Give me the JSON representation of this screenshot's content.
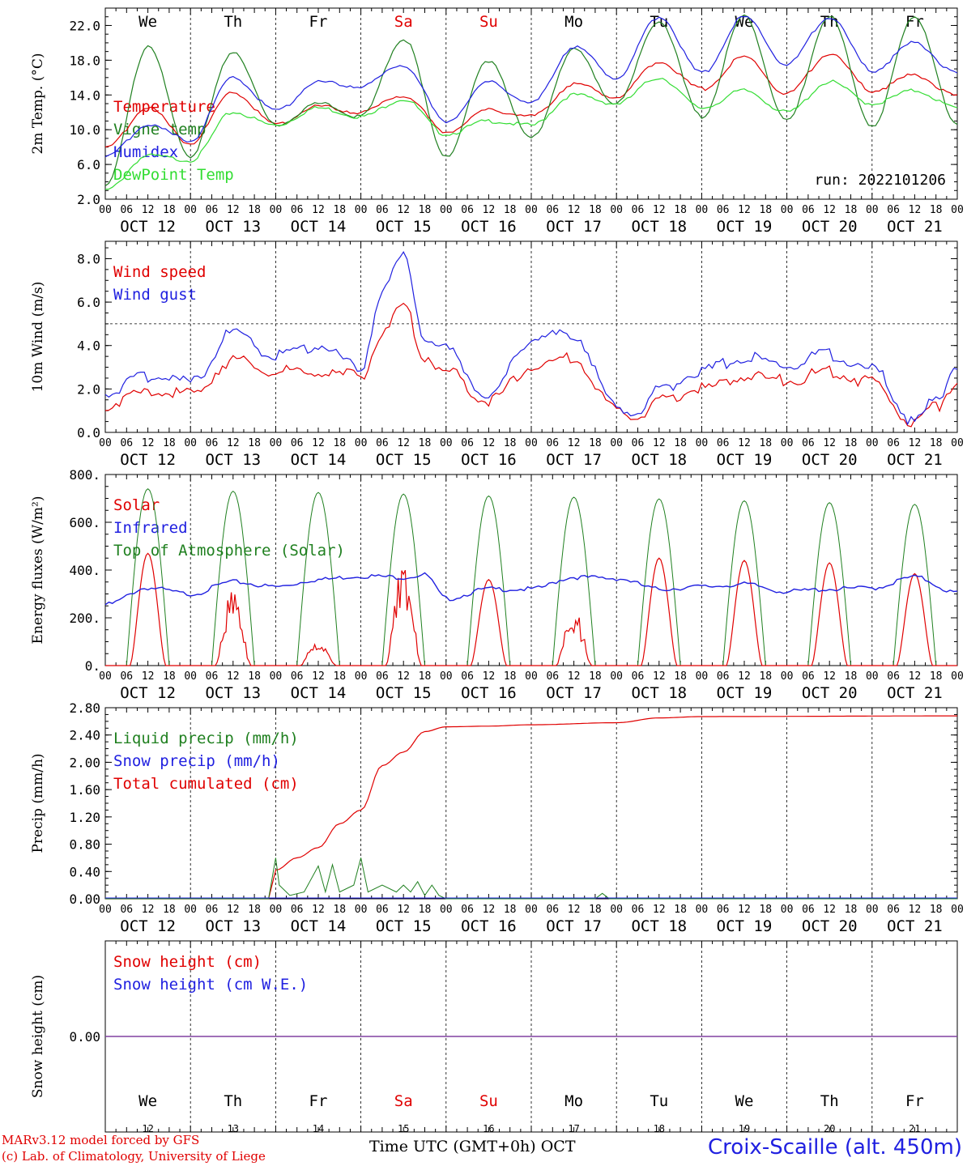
{
  "colors": {
    "red": "#e00000",
    "green": "#208020",
    "blue": "#2020e0",
    "lightgreen": "#33dd33",
    "purple": "#8040a0"
  },
  "days": [
    "12",
    "13",
    "14",
    "15",
    "16",
    "17",
    "18",
    "19",
    "20",
    "21"
  ],
  "day_abbr": [
    "We",
    "Th",
    "Fr",
    "Sa",
    "Su",
    "Mo",
    "Tu",
    "We",
    "Th",
    "Fr"
  ],
  "weekend_index": [
    3,
    4
  ],
  "date_labels": [
    "OCT 12",
    "OCT 13",
    "OCT 14",
    "OCT 15",
    "OCT 16",
    "OCT 17",
    "OCT 18",
    "OCT 19",
    "OCT 20",
    "OCT 21"
  ],
  "hour_ticks": [
    "00",
    "06",
    "12",
    "18"
  ],
  "hour_end": "00",
  "footer": {
    "model": "MARv3.12 model forced by GFS",
    "credit": "(c) Lab. of Climatology, University of Liege",
    "time_axis": "Time UTC (GMT+0h) OCT",
    "location": "Croix-Scaille (alt. 450m)"
  },
  "chart_data": [
    {
      "type": "line",
      "id": "temp",
      "ylabel": "2m Temp. (°C)",
      "ylim": [
        2,
        24
      ],
      "yticks": [
        "2.0",
        "6.0",
        "10.0",
        "14.0",
        "18.0",
        "22.0"
      ],
      "run_label": "run: 2022101206",
      "legend": [
        {
          "name": "Temperature",
          "color": "red"
        },
        {
          "name": "Vigne temp",
          "color": "green"
        },
        {
          "name": "Humidex",
          "color": "blue"
        },
        {
          "name": "DewPoint Temp",
          "color": "lightgreen"
        }
      ],
      "x_hours": [
        0,
        12,
        24,
        36,
        48,
        60,
        72,
        84,
        96,
        108,
        120,
        132,
        144,
        156,
        168,
        180,
        192,
        204,
        216,
        228,
        240
      ],
      "series": [
        {
          "name": "Temperature",
          "color": "red",
          "values": [
            7.8,
            12.5,
            8.5,
            14.3,
            10.6,
            12.7,
            12.0,
            14.0,
            9.8,
            12.3,
            11.5,
            15.2,
            13.8,
            17.8,
            14.7,
            18.4,
            14.1,
            18.8,
            14.5,
            16.3,
            13.9
          ]
        },
        {
          "name": "Vigne temp",
          "color": "green",
          "values": [
            3.5,
            19.5,
            7.0,
            19.0,
            10.5,
            13.0,
            11.5,
            20.5,
            7.0,
            18.0,
            9.0,
            19.2,
            13.0,
            22.5,
            11.5,
            23.0,
            11.0,
            23.0,
            10.5,
            23.0,
            10.5
          ]
        },
        {
          "name": "Humidex",
          "color": "blue",
          "values": [
            6.8,
            10.5,
            8.8,
            16.0,
            12.2,
            15.5,
            15.0,
            17.5,
            11.0,
            15.5,
            13.0,
            19.5,
            16.0,
            23.0,
            16.5,
            23.0,
            17.5,
            23.0,
            16.8,
            20.0,
            16.5
          ]
        },
        {
          "name": "DewPoint Temp",
          "color": "lightgreen",
          "values": [
            3.0,
            7.0,
            6.5,
            12.0,
            10.5,
            12.5,
            11.5,
            13.5,
            9.5,
            11.0,
            10.5,
            14.0,
            13.0,
            16.0,
            12.5,
            14.5,
            12.0,
            15.5,
            13.0,
            14.5,
            12.5
          ]
        }
      ]
    },
    {
      "type": "line",
      "id": "wind",
      "ylabel": "10m Wind (m/s)",
      "ylim": [
        0,
        8.8
      ],
      "yticks": [
        "0.0",
        "2.0",
        "4.0",
        "6.0",
        "8.0"
      ],
      "reference_line": 5.0,
      "legend": [
        {
          "name": "Wind speed",
          "color": "red"
        },
        {
          "name": "Wind gust",
          "color": "blue"
        }
      ],
      "x_hours": [
        0,
        12,
        24,
        36,
        48,
        60,
        72,
        78,
        84,
        90,
        96,
        108,
        120,
        132,
        144,
        150,
        156,
        168,
        180,
        192,
        204,
        216,
        228,
        234,
        240
      ],
      "series": [
        {
          "name": "Wind speed",
          "color": "red",
          "values": [
            1.3,
            1.8,
            1.8,
            3.3,
            2.8,
            2.7,
            2.6,
            4.5,
            5.8,
            3.5,
            2.8,
            1.4,
            3.0,
            3.4,
            1.0,
            0.8,
            1.5,
            2.0,
            2.6,
            2.4,
            2.8,
            2.3,
            0.4,
            1.2,
            2.4
          ]
        },
        {
          "name": "Wind gust",
          "color": "blue",
          "values": [
            1.8,
            2.6,
            2.3,
            4.6,
            3.5,
            4.0,
            3.0,
            6.5,
            8.1,
            4.5,
            3.8,
            1.7,
            4.3,
            4.5,
            1.1,
            1.0,
            2.0,
            2.8,
            3.5,
            3.1,
            3.6,
            2.9,
            0.5,
            1.5,
            3.2
          ]
        }
      ]
    },
    {
      "type": "line",
      "id": "energy",
      "ylabel": "Energy fluxes (W/m²)",
      "ylim": [
        0,
        800
      ],
      "yticks": [
        "0.",
        "200.",
        "400.",
        "600.",
        "800."
      ],
      "legend": [
        {
          "name": "Solar",
          "color": "red"
        },
        {
          "name": "Infrared",
          "color": "blue"
        },
        {
          "name": "Top of Atmosphere (Solar)",
          "color": "green"
        }
      ],
      "toa_peaks": [
        740,
        730,
        725,
        718,
        710,
        705,
        698,
        690,
        682,
        675
      ],
      "solar_peaks": [
        470,
        330,
        120,
        450,
        360,
        245,
        450,
        440,
        430,
        385
      ],
      "infrared": {
        "x_hours": [
          0,
          12,
          24,
          36,
          48,
          60,
          72,
          84,
          90,
          96,
          108,
          120,
          132,
          144,
          156,
          168,
          180,
          192,
          204,
          216,
          228,
          240
        ],
        "values": [
          255,
          325,
          300,
          350,
          330,
          360,
          375,
          370,
          380,
          280,
          320,
          320,
          370,
          365,
          320,
          330,
          340,
          310,
          320,
          325,
          370,
          305
        ]
      }
    },
    {
      "type": "line",
      "id": "precip",
      "ylabel": "Precip (mm/h)",
      "ylim": [
        0,
        2.8
      ],
      "yticks": [
        "0.00",
        "0.40",
        "0.80",
        "1.20",
        "1.60",
        "2.00",
        "2.40",
        "2.80"
      ],
      "legend": [
        {
          "name": "Liquid precip (mm/h)",
          "color": "green"
        },
        {
          "name": "Snow precip (mm/h)",
          "color": "blue"
        },
        {
          "name": "Total cumulated (cm)",
          "color": "red"
        }
      ],
      "series": [
        {
          "name": "Total cumulated (cm)",
          "color": "red",
          "x_hours": [
            0,
            46,
            48,
            54,
            60,
            66,
            72,
            78,
            84,
            90,
            96,
            108,
            120,
            144,
            156,
            168,
            240
          ],
          "values": [
            0.0,
            0.0,
            0.42,
            0.6,
            0.75,
            1.1,
            1.3,
            1.95,
            2.15,
            2.45,
            2.52,
            2.53,
            2.55,
            2.58,
            2.65,
            2.67,
            2.68
          ]
        },
        {
          "name": "Liquid precip (mm/h)",
          "color": "green",
          "x_hours": [
            46,
            48,
            49,
            52,
            56,
            60,
            62,
            64,
            66,
            70,
            72,
            74,
            78,
            82,
            84,
            86,
            88,
            90,
            92,
            94,
            96,
            120,
            138,
            140,
            142,
            240
          ],
          "values": [
            0.0,
            0.6,
            0.2,
            0.05,
            0.1,
            0.48,
            0.1,
            0.5,
            0.1,
            0.2,
            0.6,
            0.1,
            0.2,
            0.1,
            0.2,
            0.1,
            0.25,
            0.05,
            0.2,
            0.05,
            0.0,
            0.0,
            0.0,
            0.08,
            0.0,
            0.0
          ]
        }
      ]
    },
    {
      "type": "line",
      "id": "snow",
      "ylabel": "Snow height (cm)",
      "ylim": [
        -1,
        1
      ],
      "yticks": [
        "0.00"
      ],
      "legend": [
        {
          "name": "Snow height (cm)",
          "color": "red"
        },
        {
          "name": "Snow height (cm W.E.)",
          "color": "blue"
        }
      ],
      "series": [
        {
          "name": "Snow height (cm)",
          "color": "purple",
          "x_hours": [
            0,
            240
          ],
          "values": [
            0,
            0
          ]
        }
      ]
    }
  ]
}
